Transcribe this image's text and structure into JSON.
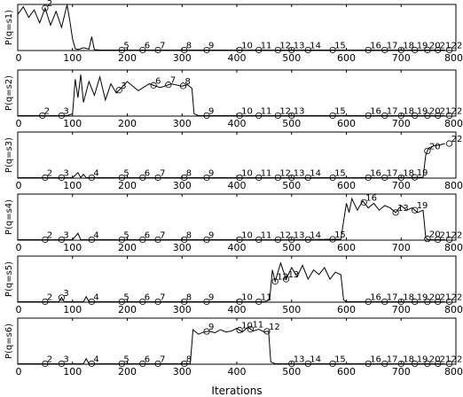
{
  "figure": {
    "xlabel": "Iterations",
    "x_ticks": [
      "0",
      "100",
      "200",
      "300",
      "400",
      "500",
      "600",
      "700",
      "800"
    ]
  },
  "chart_data": [
    {
      "type": "line",
      "ylabel": "P(q=s1)",
      "xlim": [
        0,
        800
      ],
      "ylim": [
        0,
        1
      ],
      "x_ticks": [
        "0",
        "100",
        "200",
        "300",
        "400",
        "500",
        "600",
        "700",
        "800"
      ],
      "series": [
        {
          "x": [
            0,
            10,
            20,
            30,
            40,
            50,
            60,
            70,
            80,
            90,
            95,
            100,
            105,
            110,
            120,
            130,
            135,
            140,
            150,
            200,
            300,
            400,
            500,
            600,
            700,
            780
          ],
          "values": [
            0.78,
            0.95,
            0.72,
            0.88,
            0.6,
            0.92,
            0.55,
            0.85,
            0.5,
            0.99,
            0.65,
            0.25,
            0.04,
            0.02,
            0.06,
            0.03,
            0.3,
            0.02,
            0.01,
            0.01,
            0.01,
            0.01,
            0.01,
            0.01,
            0.01,
            0.01
          ]
        }
      ],
      "annotations": [
        {
          "text": "2",
          "x": 50
        },
        {
          "text": "5",
          "x": 190
        },
        {
          "text": "6",
          "x": 228
        },
        {
          "text": "7",
          "x": 256
        },
        {
          "text": "8",
          "x": 304
        },
        {
          "text": "9",
          "x": 345
        },
        {
          "text": "10",
          "x": 405
        },
        {
          "text": "11",
          "x": 440
        },
        {
          "text": "12",
          "x": 475
        },
        {
          "text": "13",
          "x": 500
        },
        {
          "text": "14",
          "x": 530
        },
        {
          "text": "15",
          "x": 575
        },
        {
          "text": "16",
          "x": 640
        },
        {
          "text": "17",
          "x": 670
        },
        {
          "text": "18",
          "x": 700
        },
        {
          "text": "19",
          "x": 725
        },
        {
          "text": "20",
          "x": 748
        },
        {
          "text": "21",
          "x": 767
        },
        {
          "text": "22",
          "x": 788
        }
      ]
    },
    {
      "type": "line",
      "ylabel": "P(q=s2)",
      "xlim": [
        0,
        800
      ],
      "ylim": [
        0,
        1
      ],
      "x_ticks": [
        "0",
        "100",
        "200",
        "300",
        "400",
        "500",
        "600",
        "700",
        "800"
      ],
      "series": [
        {
          "x": [
            0,
            90,
            100,
            105,
            110,
            115,
            120,
            130,
            140,
            150,
            160,
            170,
            180,
            200,
            220,
            240,
            260,
            280,
            300,
            310,
            318,
            322,
            330,
            400,
            500,
            600,
            700,
            780
          ],
          "values": [
            0.01,
            0.01,
            0.05,
            0.8,
            0.4,
            0.9,
            0.3,
            0.75,
            0.45,
            0.85,
            0.35,
            0.7,
            0.5,
            0.75,
            0.55,
            0.7,
            0.62,
            0.7,
            0.65,
            0.68,
            0.6,
            0.05,
            0.01,
            0.01,
            0.01,
            0.01,
            0.01,
            0.01
          ]
        }
      ],
      "annotations": [
        {
          "text": "2",
          "x": 45
        },
        {
          "text": "3",
          "x": 80
        },
        {
          "text": "3",
          "x": 185
        },
        {
          "text": "6",
          "x": 248
        },
        {
          "text": "7",
          "x": 275
        },
        {
          "text": "8",
          "x": 302
        },
        {
          "text": "9",
          "x": 345
        },
        {
          "text": "10",
          "x": 405
        },
        {
          "text": "11",
          "x": 440
        },
        {
          "text": "12",
          "x": 475
        },
        {
          "text": "13",
          "x": 500
        },
        {
          "text": "15",
          "x": 575
        },
        {
          "text": "16",
          "x": 640
        },
        {
          "text": "17",
          "x": 670
        },
        {
          "text": "18",
          "x": 700
        },
        {
          "text": "19",
          "x": 725
        },
        {
          "text": "20",
          "x": 748
        },
        {
          "text": "21",
          "x": 767
        },
        {
          "text": "22",
          "x": 788
        }
      ]
    },
    {
      "type": "line",
      "ylabel": "P(q=s3)",
      "xlim": [
        0,
        800
      ],
      "ylim": [
        0,
        1
      ],
      "x_ticks": [
        "0",
        "100",
        "200",
        "300",
        "400",
        "500",
        "600",
        "700",
        "800"
      ],
      "series": [
        {
          "x": [
            0,
            100,
            110,
            115,
            120,
            125,
            130,
            200,
            300,
            400,
            500,
            600,
            700,
            740,
            745,
            750,
            760,
            770,
            780
          ],
          "values": [
            0.01,
            0.01,
            0.12,
            0.01,
            0.08,
            0.01,
            0.01,
            0.01,
            0.01,
            0.01,
            0.01,
            0.01,
            0.01,
            0.02,
            0.5,
            0.65,
            0.7,
            0.72,
            0.75
          ]
        }
      ],
      "annotations": [
        {
          "text": "2",
          "x": 50
        },
        {
          "text": "3",
          "x": 80
        },
        {
          "text": "4",
          "x": 135
        },
        {
          "text": "5",
          "x": 190
        },
        {
          "text": "6",
          "x": 228
        },
        {
          "text": "7",
          "x": 256
        },
        {
          "text": "8",
          "x": 304
        },
        {
          "text": "9",
          "x": 345
        },
        {
          "text": "10",
          "x": 405
        },
        {
          "text": "11",
          "x": 440
        },
        {
          "text": "12",
          "x": 475
        },
        {
          "text": "13",
          "x": 500
        },
        {
          "text": "14",
          "x": 530
        },
        {
          "text": "15",
          "x": 575
        },
        {
          "text": "16",
          "x": 640
        },
        {
          "text": "17",
          "x": 670
        },
        {
          "text": "18",
          "x": 700
        },
        {
          "text": "19",
          "x": 725
        },
        {
          "text": "20",
          "x": 748
        },
        {
          "text": "22",
          "x": 788
        }
      ]
    },
    {
      "type": "line",
      "ylabel": "P(q=s4)",
      "xlim": [
        0,
        800
      ],
      "ylim": [
        0,
        1
      ],
      "x_ticks": [
        "0",
        "100",
        "200",
        "300",
        "400",
        "500",
        "600",
        "700",
        "800"
      ],
      "series": [
        {
          "x": [
            0,
            100,
            110,
            115,
            120,
            200,
            300,
            400,
            500,
            590,
            600,
            605,
            610,
            620,
            630,
            640,
            650,
            660,
            670,
            680,
            690,
            700,
            710,
            720,
            730,
            740,
            745,
            750,
            780
          ],
          "values": [
            0.01,
            0.01,
            0.15,
            0.01,
            0.01,
            0.01,
            0.01,
            0.01,
            0.01,
            0.02,
            0.8,
            0.6,
            0.9,
            0.65,
            0.85,
            0.7,
            0.8,
            0.65,
            0.75,
            0.7,
            0.6,
            0.75,
            0.65,
            0.7,
            0.6,
            0.65,
            0.05,
            0.01,
            0.01
          ]
        }
      ],
      "annotations": [
        {
          "text": "2",
          "x": 50
        },
        {
          "text": "3",
          "x": 80
        },
        {
          "text": "4",
          "x": 135
        },
        {
          "text": "5",
          "x": 190
        },
        {
          "text": "6",
          "x": 228
        },
        {
          "text": "7",
          "x": 256
        },
        {
          "text": "8",
          "x": 304
        },
        {
          "text": "9",
          "x": 345
        },
        {
          "text": "10",
          "x": 405
        },
        {
          "text": "11",
          "x": 440
        },
        {
          "text": "12",
          "x": 475
        },
        {
          "text": "13",
          "x": 500
        },
        {
          "text": "14",
          "x": 530
        },
        {
          "text": "15",
          "x": 575
        },
        {
          "text": "16",
          "x": 632
        },
        {
          "text": "13",
          "x": 690
        },
        {
          "text": "19",
          "x": 725
        },
        {
          "text": "20",
          "x": 748
        },
        {
          "text": "21",
          "x": 767
        },
        {
          "text": "22",
          "x": 788
        }
      ]
    },
    {
      "type": "line",
      "ylabel": "P(q=s5)",
      "xlim": [
        0,
        800
      ],
      "ylim": [
        0,
        1
      ],
      "x_ticks": [
        "0",
        "100",
        "200",
        "300",
        "400",
        "500",
        "600",
        "700",
        "800"
      ],
      "series": [
        {
          "x": [
            0,
            75,
            80,
            85,
            100,
            120,
            125,
            130,
            200,
            300,
            400,
            450,
            460,
            465,
            470,
            480,
            490,
            500,
            510,
            520,
            530,
            540,
            550,
            560,
            570,
            580,
            590,
            595,
            600,
            700,
            780
          ],
          "values": [
            0.01,
            0.01,
            0.1,
            0.01,
            0.01,
            0.01,
            0.12,
            0.01,
            0.01,
            0.01,
            0.01,
            0.01,
            0.05,
            0.7,
            0.45,
            0.85,
            0.5,
            0.75,
            0.55,
            0.8,
            0.5,
            0.7,
            0.6,
            0.75,
            0.5,
            0.65,
            0.6,
            0.05,
            0.01,
            0.01,
            0.01
          ]
        }
      ],
      "annotations": [
        {
          "text": "2",
          "x": 50
        },
        {
          "text": "3",
          "x": 80
        },
        {
          "text": "4",
          "x": 135
        },
        {
          "text": "5",
          "x": 190
        },
        {
          "text": "6",
          "x": 228
        },
        {
          "text": "7",
          "x": 256
        },
        {
          "text": "8",
          "x": 304
        },
        {
          "text": "9",
          "x": 345
        },
        {
          "text": "10",
          "x": 405
        },
        {
          "text": "11",
          "x": 440
        },
        {
          "text": "12",
          "x": 470
        },
        {
          "text": "13",
          "x": 490
        },
        {
          "text": "16",
          "x": 640
        },
        {
          "text": "17",
          "x": 670
        },
        {
          "text": "18",
          "x": 700
        },
        {
          "text": "19",
          "x": 725
        },
        {
          "text": "20",
          "x": 748
        },
        {
          "text": "21",
          "x": 767
        },
        {
          "text": "22",
          "x": 788
        }
      ]
    },
    {
      "type": "line",
      "ylabel": "P(q=s6)",
      "xlim": [
        0,
        800
      ],
      "ylim": [
        0,
        1
      ],
      "x_ticks": [
        "0",
        "100",
        "200",
        "300",
        "400",
        "500",
        "600",
        "700",
        "800"
      ],
      "series": [
        {
          "x": [
            0,
            120,
            125,
            130,
            200,
            300,
            315,
            320,
            330,
            340,
            350,
            360,
            370,
            380,
            390,
            400,
            410,
            420,
            430,
            440,
            450,
            458,
            462,
            470,
            500,
            600,
            700,
            780
          ],
          "values": [
            0.01,
            0.01,
            0.12,
            0.01,
            0.01,
            0.01,
            0.01,
            0.75,
            0.65,
            0.7,
            0.72,
            0.68,
            0.75,
            0.7,
            0.72,
            0.78,
            0.7,
            0.8,
            0.72,
            0.76,
            0.7,
            0.72,
            0.05,
            0.01,
            0.01,
            0.01,
            0.01,
            0.01
          ]
        }
      ],
      "annotations": [
        {
          "text": "2",
          "x": 50
        },
        {
          "text": "3",
          "x": 80
        },
        {
          "text": "4",
          "x": 135
        },
        {
          "text": "5",
          "x": 190
        },
        {
          "text": "6",
          "x": 228
        },
        {
          "text": "7",
          "x": 256
        },
        {
          "text": "8",
          "x": 304
        },
        {
          "text": "9",
          "x": 345
        },
        {
          "text": "10",
          "x": 405
        },
        {
          "text": "11",
          "x": 425
        },
        {
          "text": "12",
          "x": 455
        },
        {
          "text": "13",
          "x": 500
        },
        {
          "text": "14",
          "x": 530
        },
        {
          "text": "15",
          "x": 575
        },
        {
          "text": "16",
          "x": 640
        },
        {
          "text": "17",
          "x": 670
        },
        {
          "text": "18",
          "x": 700
        },
        {
          "text": "19",
          "x": 725
        },
        {
          "text": "20",
          "x": 748
        },
        {
          "text": "21",
          "x": 767
        },
        {
          "text": "22",
          "x": 788
        }
      ]
    }
  ]
}
